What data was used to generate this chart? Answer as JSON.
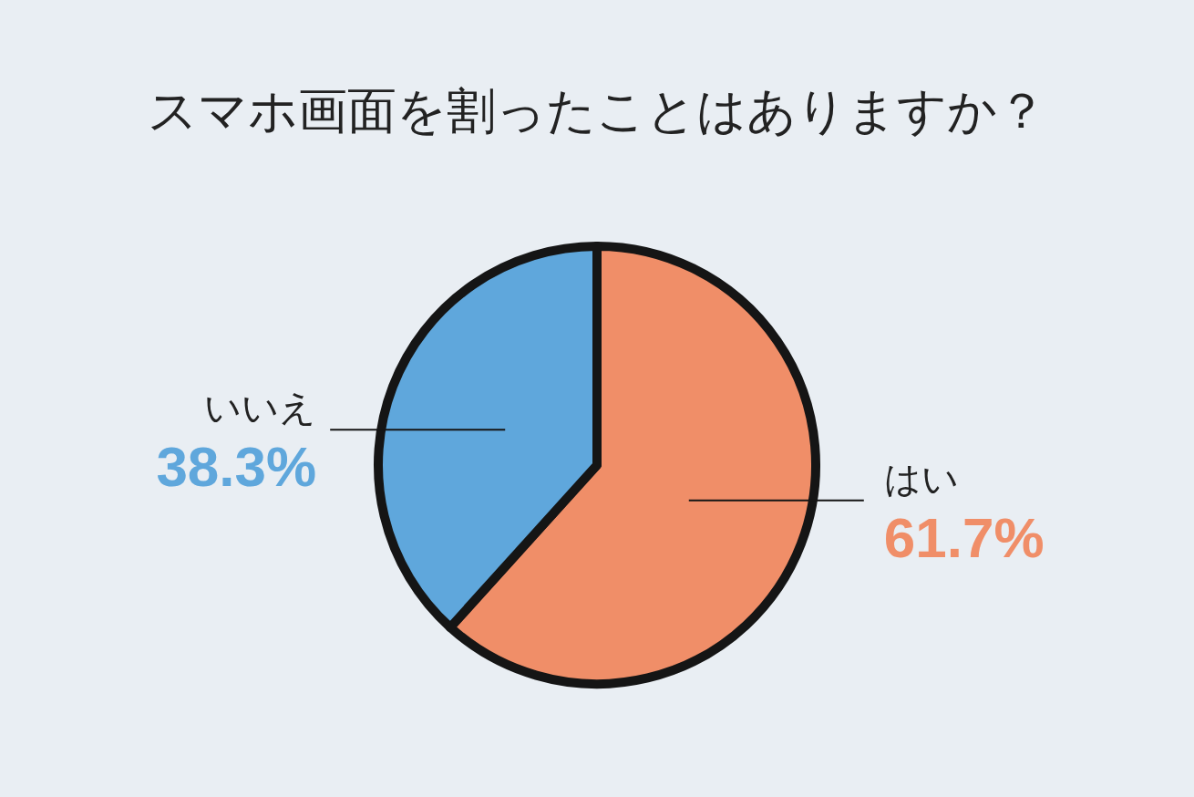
{
  "chart_data": {
    "type": "pie",
    "title": "スマホ画面を割ったことはありますか？",
    "categories": [
      "はい",
      "いいえ"
    ],
    "values": [
      61.7,
      38.3
    ],
    "value_labels": [
      "61.7%",
      "38.3%"
    ],
    "colors": [
      "#f08e68",
      "#5fa7dc"
    ]
  }
}
